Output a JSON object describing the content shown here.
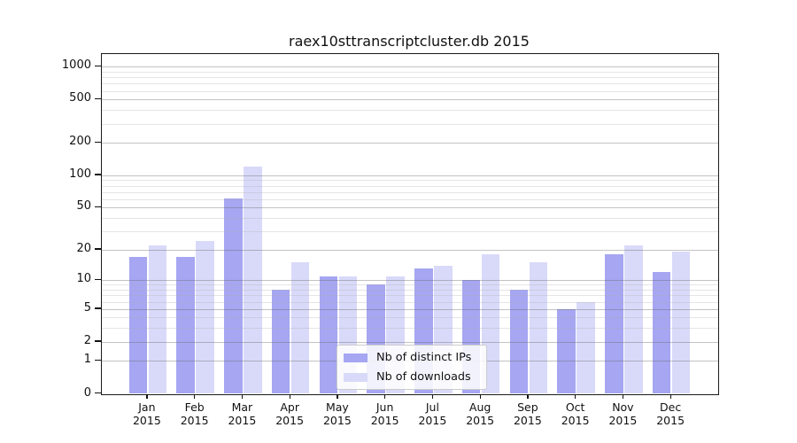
{
  "title": "raex10sttranscriptcluster.db 2015",
  "chart_data": {
    "type": "bar",
    "title": "raex10sttranscriptcluster.db 2015",
    "months": [
      "Jan",
      "Feb",
      "Mar",
      "Apr",
      "May",
      "Jun",
      "Jul",
      "Aug",
      "Sep",
      "Oct",
      "Nov",
      "Dec"
    ],
    "year": "2015",
    "categories": [
      "Jan 2015",
      "Feb 2015",
      "Mar 2015",
      "Apr 2015",
      "May 2015",
      "Jun 2015",
      "Jul 2015",
      "Aug 2015",
      "Sep 2015",
      "Oct 2015",
      "Nov 2015",
      "Dec 2015"
    ],
    "series": [
      {
        "name": "Nb of distinct IPs",
        "color": "#a6a6f2",
        "values": [
          17,
          17,
          61,
          8,
          11,
          9,
          13,
          10,
          8,
          5,
          18,
          12
        ]
      },
      {
        "name": "Nb of downloads",
        "color": "#d9d9f9",
        "values": [
          22,
          24,
          120,
          15,
          11,
          11,
          14,
          18,
          15,
          6,
          22,
          19
        ]
      }
    ],
    "yscale": "log1p",
    "major_yticks": [
      0,
      1,
      2,
      5,
      10,
      20,
      50,
      100,
      200,
      500,
      1000
    ],
    "minor_yticks": [
      3,
      4,
      6,
      7,
      8,
      9,
      30,
      40,
      60,
      70,
      80,
      90,
      300,
      400,
      600,
      700,
      800,
      900
    ],
    "ylim": [
      0,
      1315
    ],
    "xlabel": "",
    "ylabel": "",
    "grid": true,
    "legend_position": "lower center",
    "axis_color": "#1a1a1a"
  }
}
